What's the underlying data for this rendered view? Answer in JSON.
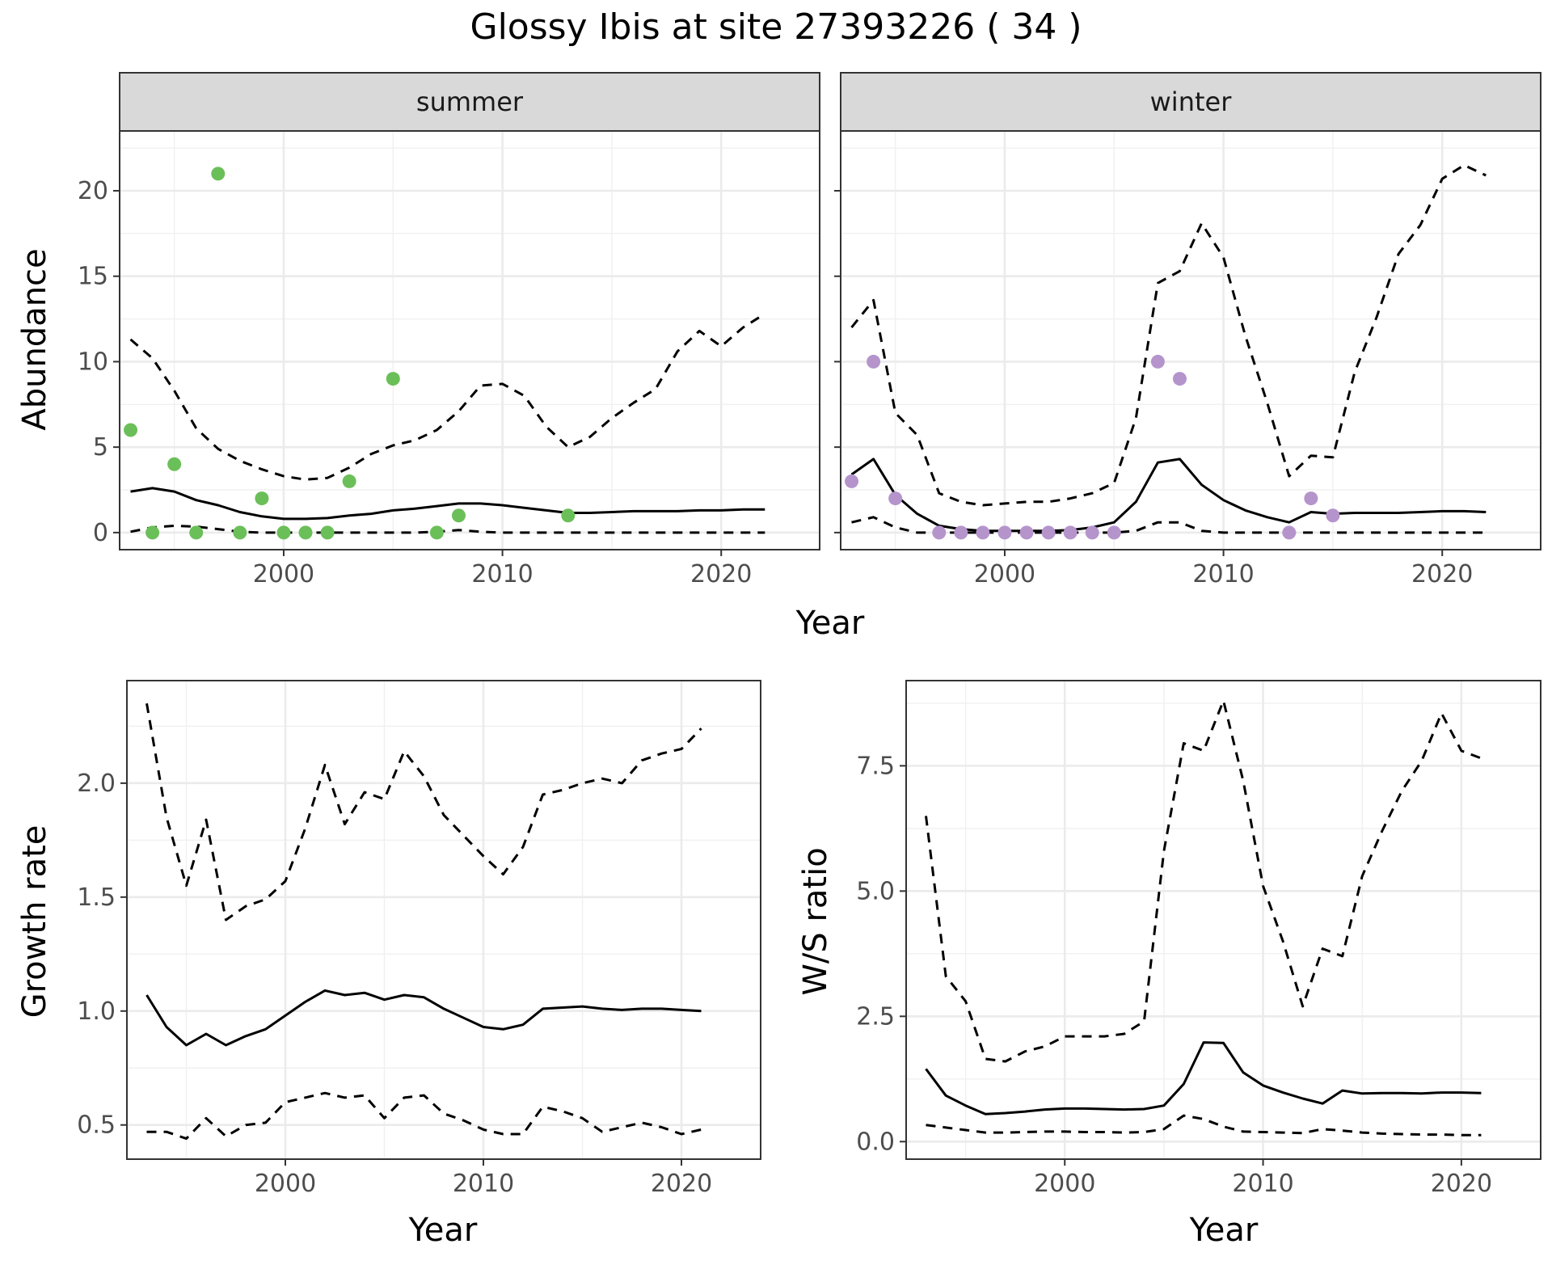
{
  "title": "Glossy Ibis at site 27393226 ( 34 )",
  "chart_data": [
    {
      "type": "scatter",
      "panel": "summer",
      "strip_label": "summer",
      "xlabel": "Year",
      "ylabel": "Abundance",
      "xlim": [
        1992.5,
        2024.5
      ],
      "ylim": [
        -1.0,
        23.5
      ],
      "xticks": [
        2000,
        2010,
        2020
      ],
      "yticks": [
        0,
        5,
        10,
        15,
        20
      ],
      "grid": true,
      "point_color": "#6bbf59",
      "points": [
        {
          "x": 1993,
          "y": 6
        },
        {
          "x": 1994,
          "y": 0
        },
        {
          "x": 1995,
          "y": 4
        },
        {
          "x": 1996,
          "y": 0
        },
        {
          "x": 1997,
          "y": 21
        },
        {
          "x": 1998,
          "y": 0
        },
        {
          "x": 1999,
          "y": 2
        },
        {
          "x": 2000,
          "y": 0
        },
        {
          "x": 2001,
          "y": 0
        },
        {
          "x": 2002,
          "y": 0
        },
        {
          "x": 2003,
          "y": 3
        },
        {
          "x": 2005,
          "y": 9
        },
        {
          "x": 2007,
          "y": 0
        },
        {
          "x": 2008,
          "y": 1
        },
        {
          "x": 2013,
          "y": 1
        }
      ],
      "series": [
        {
          "name": "estimate",
          "style": "solid",
          "x": [
            1993,
            1994,
            1995,
            1996,
            1997,
            1998,
            1999,
            2000,
            2001,
            2002,
            2003,
            2004,
            2005,
            2006,
            2007,
            2008,
            2009,
            2010,
            2011,
            2012,
            2013,
            2014,
            2015,
            2016,
            2017,
            2018,
            2019,
            2020,
            2021,
            2022
          ],
          "y": [
            2.4,
            2.6,
            2.4,
            1.9,
            1.6,
            1.2,
            0.95,
            0.8,
            0.8,
            0.85,
            1.0,
            1.1,
            1.3,
            1.4,
            1.55,
            1.7,
            1.7,
            1.6,
            1.45,
            1.3,
            1.15,
            1.15,
            1.2,
            1.25,
            1.25,
            1.25,
            1.3,
            1.3,
            1.35,
            1.35
          ]
        },
        {
          "name": "upper",
          "style": "dashed",
          "x": [
            1993,
            1994,
            1995,
            1996,
            1997,
            1998,
            1999,
            2000,
            2001,
            2002,
            2003,
            2004,
            2005,
            2006,
            2007,
            2008,
            2009,
            2010,
            2011,
            2012,
            2013,
            2014,
            2015,
            2016,
            2017,
            2018,
            2019,
            2020,
            2021,
            2022
          ],
          "y": [
            11.3,
            10.2,
            8.3,
            6.1,
            4.9,
            4.2,
            3.7,
            3.3,
            3.1,
            3.2,
            3.8,
            4.6,
            5.1,
            5.4,
            6.0,
            7.1,
            8.6,
            8.7,
            8.0,
            6.2,
            5.0,
            5.6,
            6.7,
            7.6,
            8.4,
            10.6,
            11.8,
            10.9,
            12.0,
            12.8
          ]
        },
        {
          "name": "lower",
          "style": "dashed",
          "x": [
            1993,
            1994,
            1995,
            1996,
            1997,
            1998,
            1999,
            2000,
            2001,
            2002,
            2003,
            2004,
            2005,
            2006,
            2007,
            2008,
            2009,
            2010,
            2011,
            2012,
            2013,
            2014,
            2015,
            2016,
            2017,
            2018,
            2019,
            2020,
            2021,
            2022
          ],
          "y": [
            0.05,
            0.3,
            0.4,
            0.35,
            0.2,
            0.05,
            0.0,
            0.0,
            0.0,
            0.0,
            0.0,
            0.0,
            0.0,
            0.0,
            0.05,
            0.15,
            0.05,
            0.0,
            0.0,
            0.0,
            0.0,
            0.0,
            0.0,
            0.0,
            0.0,
            0.0,
            0.0,
            0.0,
            0.0,
            0.0
          ]
        }
      ]
    },
    {
      "type": "scatter",
      "panel": "winter",
      "strip_label": "winter",
      "xlabel": "Year",
      "ylabel": "Abundance",
      "xlim": [
        1992.5,
        2024.5
      ],
      "ylim": [
        -1.0,
        23.5
      ],
      "xticks": [
        2000,
        2010,
        2020
      ],
      "yticks": [
        0,
        5,
        10,
        15,
        20
      ],
      "grid": true,
      "point_color": "#b594cc",
      "points": [
        {
          "x": 1993,
          "y": 3
        },
        {
          "x": 1994,
          "y": 10
        },
        {
          "x": 1995,
          "y": 2
        },
        {
          "x": 1997,
          "y": 0
        },
        {
          "x": 1998,
          "y": 0
        },
        {
          "x": 1999,
          "y": 0
        },
        {
          "x": 2000,
          "y": 0
        },
        {
          "x": 2001,
          "y": 0
        },
        {
          "x": 2002,
          "y": 0
        },
        {
          "x": 2003,
          "y": 0
        },
        {
          "x": 2004,
          "y": 0
        },
        {
          "x": 2005,
          "y": 0
        },
        {
          "x": 2007,
          "y": 10
        },
        {
          "x": 2008,
          "y": 9
        },
        {
          "x": 2013,
          "y": 0
        },
        {
          "x": 2014,
          "y": 2
        },
        {
          "x": 2015,
          "y": 1
        }
      ],
      "series": [
        {
          "name": "estimate",
          "style": "solid",
          "x": [
            1993,
            1994,
            1995,
            1996,
            1997,
            1998,
            1999,
            2000,
            2001,
            2002,
            2003,
            2004,
            2005,
            2006,
            2007,
            2008,
            2009,
            2010,
            2011,
            2012,
            2013,
            2014,
            2015,
            2016,
            2017,
            2018,
            2019,
            2020,
            2021,
            2022
          ],
          "y": [
            3.4,
            4.3,
            2.2,
            1.1,
            0.4,
            0.2,
            0.1,
            0.1,
            0.1,
            0.1,
            0.15,
            0.3,
            0.6,
            1.8,
            4.1,
            4.3,
            2.8,
            1.9,
            1.3,
            0.9,
            0.6,
            1.2,
            1.1,
            1.15,
            1.15,
            1.15,
            1.2,
            1.25,
            1.25,
            1.2
          ]
        },
        {
          "name": "upper",
          "style": "dashed",
          "x": [
            1993,
            1994,
            1995,
            1996,
            1997,
            1998,
            1999,
            2000,
            2001,
            2002,
            2003,
            2004,
            2005,
            2006,
            2007,
            2008,
            2009,
            2010,
            2011,
            2012,
            2013,
            2014,
            2015,
            2016,
            2017,
            2018,
            2019,
            2020,
            2021,
            2022
          ],
          "y": [
            12.0,
            13.6,
            7.0,
            5.7,
            2.3,
            1.8,
            1.6,
            1.7,
            1.8,
            1.8,
            2.0,
            2.3,
            2.9,
            6.7,
            14.6,
            15.3,
            18.1,
            16.1,
            11.5,
            7.6,
            3.3,
            4.5,
            4.4,
            9.4,
            12.6,
            16.3,
            18.0,
            20.7,
            21.5,
            20.9
          ]
        },
        {
          "name": "lower",
          "style": "dashed",
          "x": [
            1993,
            1994,
            1995,
            1996,
            1997,
            1998,
            1999,
            2000,
            2001,
            2002,
            2003,
            2004,
            2005,
            2006,
            2007,
            2008,
            2009,
            2010,
            2011,
            2012,
            2013,
            2014,
            2015,
            2016,
            2017,
            2018,
            2019,
            2020,
            2021,
            2022
          ],
          "y": [
            0.6,
            0.9,
            0.3,
            0.0,
            0.0,
            0.0,
            0.0,
            0.0,
            0.0,
            0.0,
            0.0,
            0.0,
            0.0,
            0.1,
            0.6,
            0.6,
            0.1,
            0.0,
            0.0,
            0.0,
            0.0,
            0.0,
            0.0,
            0.0,
            0.0,
            0.0,
            0.0,
            0.0,
            0.0,
            0.0
          ]
        }
      ]
    },
    {
      "type": "line",
      "panel": "growth",
      "xlabel": "Year",
      "ylabel": "Growth rate",
      "xlim": [
        1992,
        2024
      ],
      "ylim": [
        0.35,
        2.45
      ],
      "xticks": [
        2000,
        2010,
        2020
      ],
      "yticks": [
        0.5,
        1.0,
        1.5,
        2.0
      ],
      "ytick_labels": [
        "0.5",
        "1.0",
        "1.5",
        "2.0"
      ],
      "grid": true,
      "series": [
        {
          "name": "estimate",
          "style": "solid",
          "x": [
            1993,
            1994,
            1995,
            1996,
            1997,
            1998,
            1999,
            2000,
            2001,
            2002,
            2003,
            2004,
            2005,
            2006,
            2007,
            2008,
            2009,
            2010,
            2011,
            2012,
            2013,
            2014,
            2015,
            2016,
            2017,
            2018,
            2019,
            2020,
            2021
          ],
          "y": [
            1.07,
            0.93,
            0.85,
            0.9,
            0.85,
            0.89,
            0.92,
            0.98,
            1.04,
            1.09,
            1.07,
            1.08,
            1.05,
            1.07,
            1.06,
            1.01,
            0.97,
            0.93,
            0.92,
            0.94,
            1.01,
            1.015,
            1.02,
            1.01,
            1.005,
            1.01,
            1.01,
            1.005,
            1.0
          ]
        },
        {
          "name": "upper",
          "style": "dashed",
          "x": [
            1993,
            1994,
            1995,
            1996,
            1997,
            1998,
            1999,
            2000,
            2001,
            2002,
            2003,
            2004,
            2005,
            2006,
            2007,
            2008,
            2009,
            2010,
            2011,
            2012,
            2013,
            2014,
            2015,
            2016,
            2017,
            2018,
            2019,
            2020,
            2021
          ],
          "y": [
            2.35,
            1.85,
            1.55,
            1.84,
            1.4,
            1.46,
            1.49,
            1.57,
            1.8,
            2.08,
            1.82,
            1.96,
            1.93,
            2.14,
            2.03,
            1.86,
            1.77,
            1.68,
            1.6,
            1.72,
            1.95,
            1.97,
            2.0,
            2.02,
            2.0,
            2.1,
            2.13,
            2.15,
            2.24
          ]
        },
        {
          "name": "lower",
          "style": "dashed",
          "x": [
            1993,
            1994,
            1995,
            1996,
            1997,
            1998,
            1999,
            2000,
            2001,
            2002,
            2003,
            2004,
            2005,
            2006,
            2007,
            2008,
            2009,
            2010,
            2011,
            2012,
            2013,
            2014,
            2015,
            2016,
            2017,
            2018,
            2019,
            2020,
            2021
          ],
          "y": [
            0.47,
            0.47,
            0.44,
            0.53,
            0.45,
            0.5,
            0.51,
            0.6,
            0.62,
            0.64,
            0.62,
            0.63,
            0.53,
            0.62,
            0.63,
            0.55,
            0.52,
            0.48,
            0.46,
            0.46,
            0.58,
            0.56,
            0.53,
            0.47,
            0.49,
            0.51,
            0.49,
            0.46,
            0.48
          ]
        }
      ]
    },
    {
      "type": "line",
      "panel": "ratio",
      "xlabel": "Year",
      "ylabel": "W/S ratio",
      "xlim": [
        1992,
        2024
      ],
      "ylim": [
        -0.35,
        9.2
      ],
      "xticks": [
        2000,
        2010,
        2020
      ],
      "yticks": [
        0.0,
        2.5,
        5.0,
        7.5
      ],
      "ytick_labels": [
        "0.0",
        "2.5",
        "5.0",
        "7.5"
      ],
      "grid": true,
      "series": [
        {
          "name": "estimate",
          "style": "solid",
          "x": [
            1993,
            1994,
            1995,
            1996,
            1997,
            1998,
            1999,
            2000,
            2001,
            2002,
            2003,
            2004,
            2005,
            2006,
            2007,
            2008,
            2009,
            2010,
            2011,
            2012,
            2013,
            2014,
            2015,
            2016,
            2017,
            2018,
            2019,
            2020,
            2021
          ],
          "y": [
            1.45,
            0.92,
            0.72,
            0.55,
            0.57,
            0.6,
            0.64,
            0.66,
            0.66,
            0.65,
            0.64,
            0.65,
            0.72,
            1.15,
            1.98,
            1.97,
            1.38,
            1.12,
            0.98,
            0.86,
            0.76,
            1.02,
            0.96,
            0.97,
            0.97,
            0.96,
            0.98,
            0.98,
            0.97
          ]
        },
        {
          "name": "upper",
          "style": "dashed",
          "x": [
            1993,
            1994,
            1995,
            1996,
            1997,
            1998,
            1999,
            2000,
            2001,
            2002,
            2003,
            2004,
            2005,
            2006,
            2007,
            2008,
            2009,
            2010,
            2011,
            2012,
            2013,
            2014,
            2015,
            2016,
            2017,
            2018,
            2019,
            2020,
            2021
          ],
          "y": [
            6.5,
            3.3,
            2.8,
            1.65,
            1.6,
            1.8,
            1.9,
            2.1,
            2.1,
            2.1,
            2.15,
            2.4,
            5.8,
            7.95,
            7.8,
            8.8,
            7.2,
            5.1,
            4.0,
            2.7,
            3.85,
            3.7,
            5.3,
            6.2,
            7.0,
            7.6,
            8.55,
            7.8,
            7.65
          ]
        },
        {
          "name": "lower",
          "style": "dashed",
          "x": [
            1993,
            1994,
            1995,
            1996,
            1997,
            1998,
            1999,
            2000,
            2001,
            2002,
            2003,
            2004,
            2005,
            2006,
            2007,
            2008,
            2009,
            2010,
            2011,
            2012,
            2013,
            2014,
            2015,
            2016,
            2017,
            2018,
            2019,
            2020,
            2021
          ],
          "y": [
            0.33,
            0.28,
            0.23,
            0.18,
            0.18,
            0.19,
            0.2,
            0.2,
            0.19,
            0.19,
            0.18,
            0.19,
            0.25,
            0.52,
            0.45,
            0.3,
            0.2,
            0.19,
            0.18,
            0.17,
            0.25,
            0.22,
            0.18,
            0.16,
            0.15,
            0.14,
            0.14,
            0.13,
            0.13
          ]
        }
      ]
    }
  ]
}
